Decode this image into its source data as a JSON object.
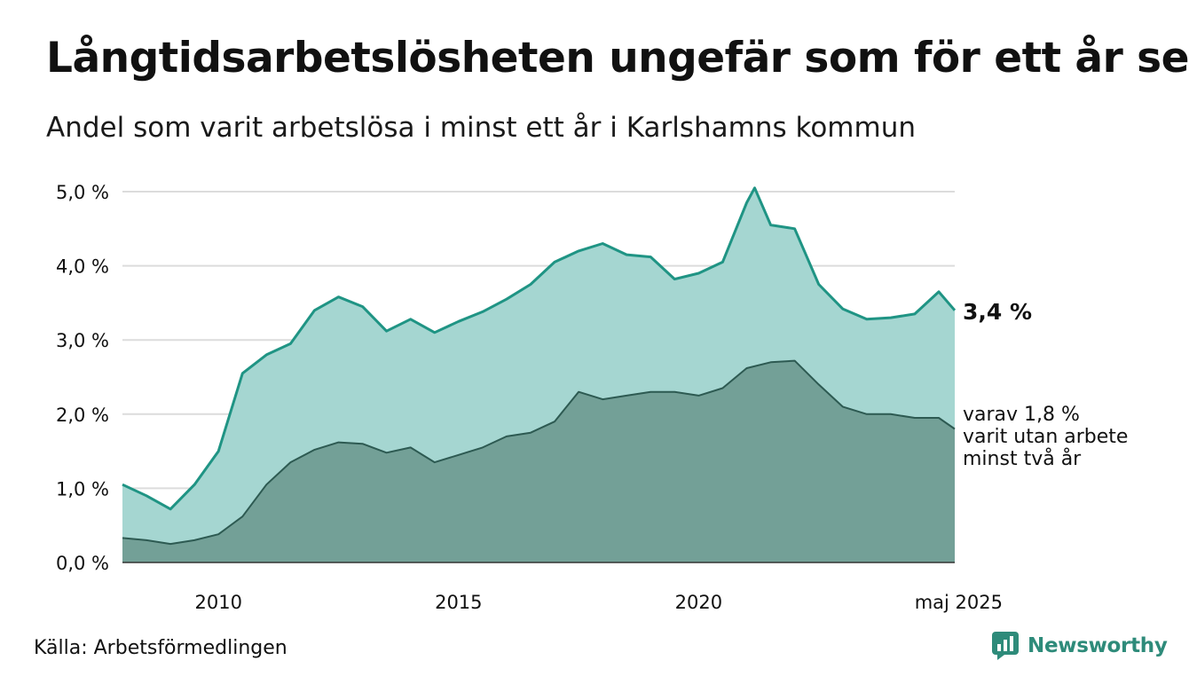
{
  "title": "Långtidsarbetslösheten ungefär som för ett år sen",
  "subtitle": "Andel som varit arbetslösa i minst ett år i Karlshamns kommun",
  "source": "Källa: Arbetsförmedlingen",
  "brand": "Newsworthy",
  "colors": {
    "total_line": "#1f9484",
    "total_fill": "#a5d6d1",
    "long_line": "#2d5a52",
    "long_fill": "#73a097",
    "brand": "#2e8b7a"
  },
  "chart_data": {
    "type": "area",
    "y_ticks": [
      "0,0 %",
      "1,0 %",
      "2,0 %",
      "3,0 %",
      "4,0 %",
      "5,0 %"
    ],
    "x_ticks": [
      "2010",
      "2015",
      "2020",
      "maj 2025"
    ],
    "ylim": [
      0,
      5
    ],
    "xlim": [
      "2008-01",
      "2025-05"
    ],
    "grid": true,
    "end_labels": {
      "total": "3,4 %",
      "long": [
        "varav 1,8 %",
        "varit utan arbete",
        "minst två år"
      ]
    },
    "series": [
      {
        "key": "total",
        "points": [
          [
            "2008-01",
            1.05
          ],
          [
            "2008-07",
            0.9
          ],
          [
            "2009-01",
            0.72
          ],
          [
            "2009-07",
            1.05
          ],
          [
            "2010-01",
            1.5
          ],
          [
            "2010-07",
            2.55
          ],
          [
            "2011-01",
            2.8
          ],
          [
            "2011-07",
            2.95
          ],
          [
            "2012-01",
            3.4
          ],
          [
            "2012-07",
            3.58
          ],
          [
            "2013-01",
            3.45
          ],
          [
            "2013-07",
            3.12
          ],
          [
            "2014-01",
            3.28
          ],
          [
            "2014-07",
            3.1
          ],
          [
            "2015-01",
            3.25
          ],
          [
            "2015-07",
            3.38
          ],
          [
            "2016-01",
            3.55
          ],
          [
            "2016-07",
            3.75
          ],
          [
            "2017-01",
            4.05
          ],
          [
            "2017-07",
            4.2
          ],
          [
            "2018-01",
            4.3
          ],
          [
            "2018-07",
            4.15
          ],
          [
            "2019-01",
            4.12
          ],
          [
            "2019-07",
            3.82
          ],
          [
            "2020-01",
            3.9
          ],
          [
            "2020-07",
            4.05
          ],
          [
            "2021-01",
            4.85
          ],
          [
            "2021-03",
            5.05
          ],
          [
            "2021-07",
            4.55
          ],
          [
            "2022-01",
            4.5
          ],
          [
            "2022-07",
            3.75
          ],
          [
            "2023-01",
            3.42
          ],
          [
            "2023-07",
            3.28
          ],
          [
            "2024-01",
            3.3
          ],
          [
            "2024-07",
            3.35
          ],
          [
            "2025-01",
            3.65
          ],
          [
            "2025-05",
            3.4
          ]
        ]
      },
      {
        "key": "long",
        "points": [
          [
            "2008-01",
            0.33
          ],
          [
            "2008-07",
            0.3
          ],
          [
            "2009-01",
            0.25
          ],
          [
            "2009-07",
            0.3
          ],
          [
            "2010-01",
            0.38
          ],
          [
            "2010-07",
            0.62
          ],
          [
            "2011-01",
            1.05
          ],
          [
            "2011-07",
            1.35
          ],
          [
            "2012-01",
            1.52
          ],
          [
            "2012-07",
            1.62
          ],
          [
            "2013-01",
            1.6
          ],
          [
            "2013-07",
            1.48
          ],
          [
            "2014-01",
            1.55
          ],
          [
            "2014-07",
            1.35
          ],
          [
            "2015-01",
            1.45
          ],
          [
            "2015-07",
            1.55
          ],
          [
            "2016-01",
            1.7
          ],
          [
            "2016-07",
            1.75
          ],
          [
            "2017-01",
            1.9
          ],
          [
            "2017-07",
            2.3
          ],
          [
            "2018-01",
            2.2
          ],
          [
            "2018-07",
            2.25
          ],
          [
            "2019-01",
            2.3
          ],
          [
            "2019-07",
            2.3
          ],
          [
            "2020-01",
            2.25
          ],
          [
            "2020-07",
            2.35
          ],
          [
            "2021-01",
            2.62
          ],
          [
            "2021-07",
            2.7
          ],
          [
            "2022-01",
            2.72
          ],
          [
            "2022-07",
            2.4
          ],
          [
            "2023-01",
            2.1
          ],
          [
            "2023-07",
            2.0
          ],
          [
            "2024-01",
            2.0
          ],
          [
            "2024-07",
            1.95
          ],
          [
            "2025-01",
            1.95
          ],
          [
            "2025-05",
            1.8
          ]
        ]
      }
    ]
  }
}
